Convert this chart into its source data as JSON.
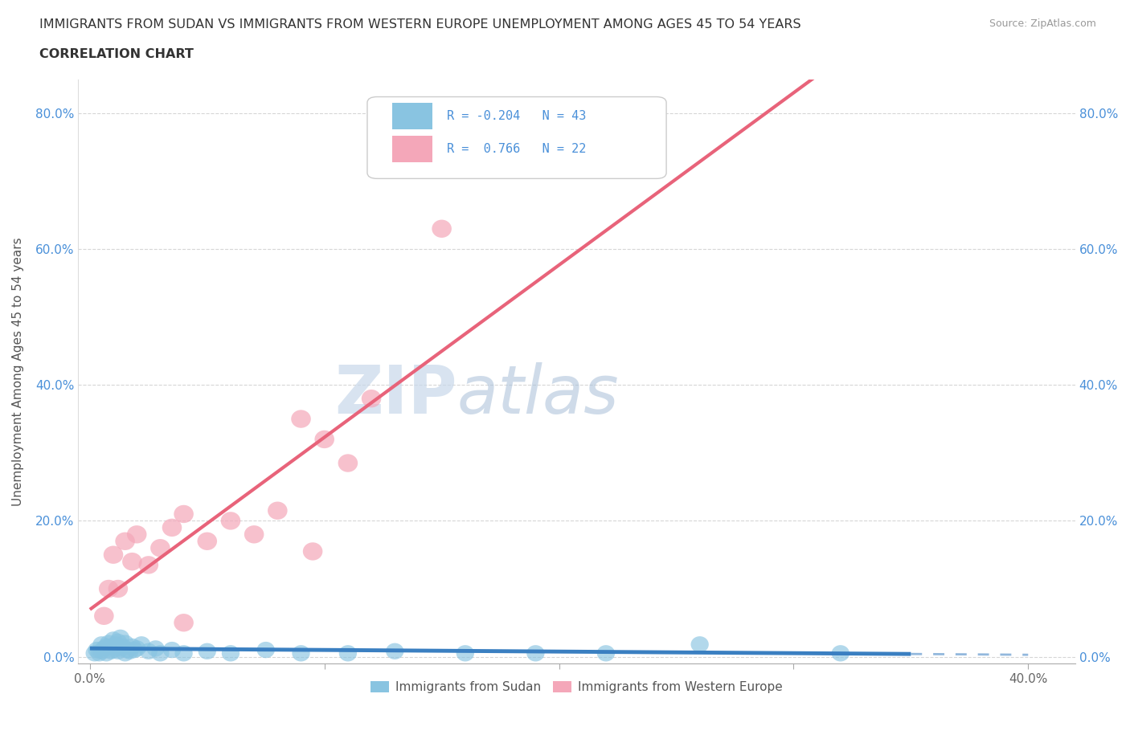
{
  "title_line1": "IMMIGRANTS FROM SUDAN VS IMMIGRANTS FROM WESTERN EUROPE UNEMPLOYMENT AMONG AGES 45 TO 54 YEARS",
  "title_line2": "CORRELATION CHART",
  "source_text": "Source: ZipAtlas.com",
  "ylabel": "Unemployment Among Ages 45 to 54 years",
  "xlim": [
    -0.005,
    0.42
  ],
  "ylim": [
    -0.01,
    0.85
  ],
  "yticks": [
    0.0,
    0.2,
    0.4,
    0.6,
    0.8
  ],
  "xticks": [
    0.0,
    0.1,
    0.2,
    0.3,
    0.4
  ],
  "xtick_labels": [
    "0.0%",
    "",
    "",
    "",
    "40.0%"
  ],
  "ytick_labels": [
    "0.0%",
    "20.0%",
    "40.0%",
    "60.0%",
    "80.0%"
  ],
  "sudan_R": -0.204,
  "sudan_N": 43,
  "western_europe_R": 0.766,
  "western_europe_N": 22,
  "sudan_color": "#89C4E1",
  "western_europe_color": "#F4A7B9",
  "sudan_trend_color": "#3A7FC1",
  "western_europe_trend_color": "#E8637A",
  "background_color": "#ffffff",
  "grid_color": "#cccccc",
  "watermark_color": "#d0dff0",
  "sudan_scatter_x": [
    0.002,
    0.003,
    0.004,
    0.005,
    0.005,
    0.006,
    0.007,
    0.007,
    0.008,
    0.009,
    0.009,
    0.01,
    0.01,
    0.011,
    0.012,
    0.012,
    0.013,
    0.013,
    0.014,
    0.015,
    0.015,
    0.016,
    0.017,
    0.018,
    0.019,
    0.02,
    0.022,
    0.025,
    0.028,
    0.03,
    0.035,
    0.04,
    0.05,
    0.06,
    0.075,
    0.09,
    0.11,
    0.13,
    0.16,
    0.19,
    0.22,
    0.26,
    0.32
  ],
  "sudan_scatter_y": [
    0.005,
    0.01,
    0.005,
    0.018,
    0.008,
    0.012,
    0.015,
    0.005,
    0.02,
    0.008,
    0.015,
    0.025,
    0.01,
    0.018,
    0.008,
    0.022,
    0.012,
    0.028,
    0.015,
    0.02,
    0.005,
    0.01,
    0.008,
    0.015,
    0.01,
    0.012,
    0.018,
    0.008,
    0.012,
    0.005,
    0.01,
    0.005,
    0.008,
    0.005,
    0.01,
    0.005,
    0.005,
    0.008,
    0.005,
    0.005,
    0.005,
    0.018,
    0.005
  ],
  "western_europe_scatter_x": [
    0.006,
    0.008,
    0.01,
    0.012,
    0.015,
    0.018,
    0.02,
    0.025,
    0.03,
    0.035,
    0.04,
    0.05,
    0.06,
    0.07,
    0.08,
    0.09,
    0.095,
    0.1,
    0.11,
    0.12,
    0.15,
    0.04
  ],
  "western_europe_scatter_y": [
    0.06,
    0.1,
    0.15,
    0.1,
    0.17,
    0.14,
    0.18,
    0.135,
    0.16,
    0.19,
    0.21,
    0.17,
    0.2,
    0.18,
    0.215,
    0.35,
    0.155,
    0.32,
    0.285,
    0.38,
    0.63,
    0.05
  ],
  "legend_label_sudan": "Immigrants from Sudan",
  "legend_label_we": "Immigrants from Western Europe"
}
